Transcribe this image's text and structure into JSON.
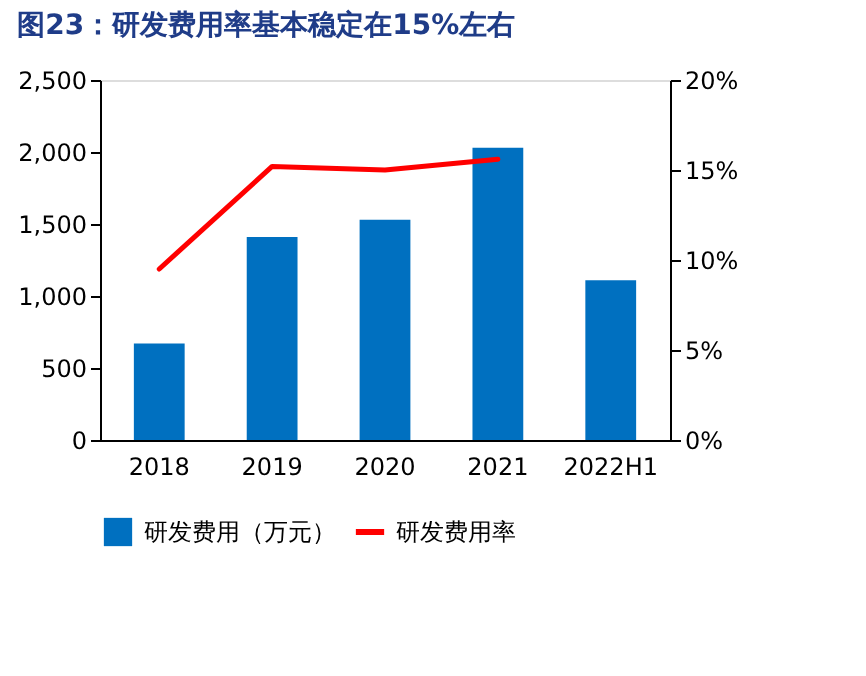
{
  "chart_data": {
    "type": "bar",
    "title": "图23：研发费用率基本稳定在15%左右",
    "categories": [
      "2018",
      "2019",
      "2020",
      "2021",
      "2022H1"
    ],
    "series": [
      {
        "name": "研发费用（万元）",
        "color": "#0070c0",
        "values": [
          670,
          1410,
          1530,
          2030,
          1110
        ]
      },
      {
        "name": "研发费用率",
        "type": "line",
        "axis": "y2",
        "color": "#ff0000",
        "values": [
          9.5,
          15.2,
          15.0,
          15.6,
          null
        ]
      }
    ],
    "ylim": [
      0,
      2500
    ],
    "yticks": [
      0,
      500,
      {
        "value": 1000,
        "label": "1,000"
      },
      {
        "value": 1500,
        "label": "1,500"
      },
      {
        "value": 2000,
        "label": "2,000"
      },
      {
        "value": 2500,
        "label": "2,500"
      }
    ],
    "y2lim": [
      0,
      20
    ],
    "y2ticks": [
      {
        "value": 0,
        "label": "0%"
      },
      {
        "value": 5,
        "label": "5%"
      },
      {
        "value": 10,
        "label": "10%"
      },
      {
        "value": 15,
        "label": "15%"
      },
      {
        "value": 20,
        "label": "20%"
      }
    ],
    "grid": false,
    "legend": "bottom",
    "line_style": "solid",
    "marker": "none"
  }
}
